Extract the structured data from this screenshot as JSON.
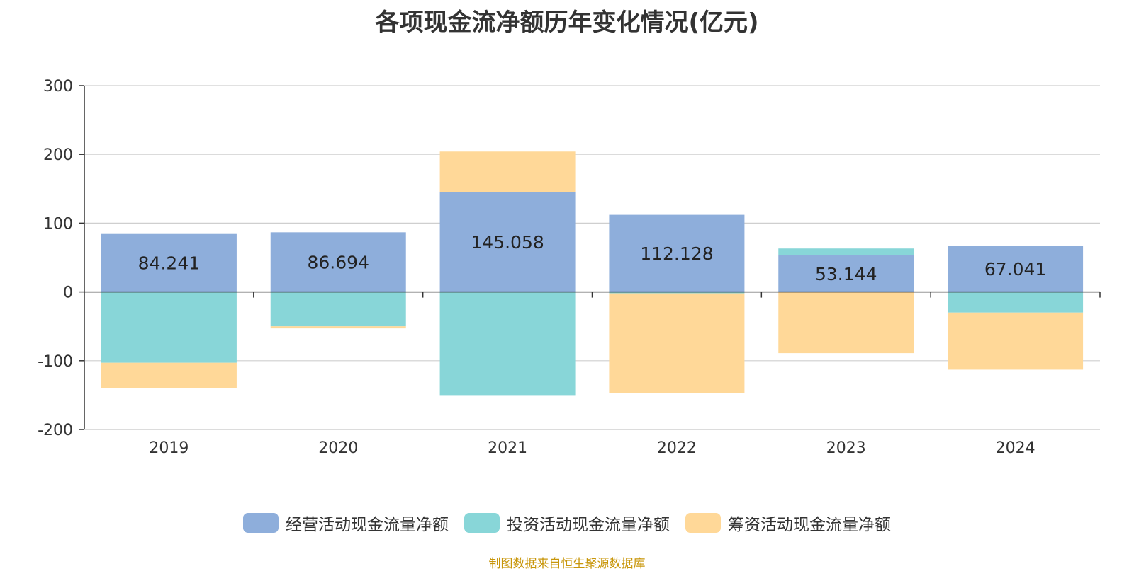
{
  "chart_data": {
    "type": "bar",
    "stacked": true,
    "title": "各项现金流净额历年变化情况(亿元)",
    "categories": [
      "2019",
      "2020",
      "2021",
      "2022",
      "2023",
      "2024"
    ],
    "series": [
      {
        "name": "经营活动现金流量净额",
        "color": "#8eaedb",
        "values": [
          84.241,
          86.694,
          145.058,
          112.128,
          53.144,
          67.041
        ],
        "labels": [
          "84.241",
          "86.694",
          "145.058",
          "112.128",
          "53.144",
          "67.041"
        ]
      },
      {
        "name": "投资活动现金流量净额",
        "color": "#88d6d8",
        "values": [
          -103,
          -50,
          -150,
          -2,
          10,
          -30
        ]
      },
      {
        "name": "筹资活动现金流量净额",
        "color": "#ffd898",
        "values": [
          -37,
          -3,
          59,
          -145,
          -89,
          -83
        ]
      }
    ],
    "y_ticks": [
      "300",
      "200",
      "100",
      "0",
      "-100",
      "-200"
    ],
    "ylim": [
      -200,
      300
    ],
    "grid": true,
    "legend_position": "bottom"
  },
  "source": "制图数据来自恒生聚源数据库"
}
